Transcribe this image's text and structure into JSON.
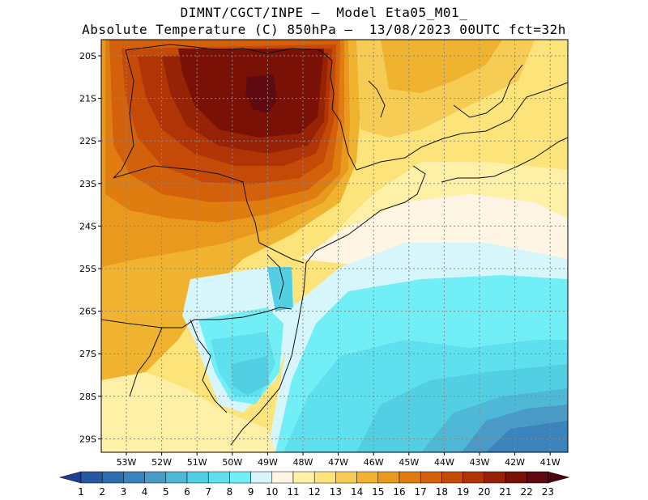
{
  "header": {
    "title_line1": "DIMNT/CGCT/INPE —  Model Eta05_M01_",
    "title_line2": "Absolute Temperature (C) 850hPa —  13/08/2023 00UTC fct=32h"
  },
  "map": {
    "lat_labels": [
      "20S",
      "21S",
      "22S",
      "23S",
      "24S",
      "25S",
      "26S",
      "27S",
      "28S",
      "29S"
    ],
    "lon_labels": [
      "53W",
      "52W",
      "51W",
      "50W",
      "49W",
      "48W",
      "47W",
      "46W",
      "45W",
      "44W",
      "43W",
      "42W",
      "41W"
    ]
  },
  "colorbar": {
    "labels": [
      "1",
      "2",
      "3",
      "4",
      "5",
      "6",
      "7",
      "8",
      "9",
      "10",
      "11",
      "12",
      "13",
      "14",
      "15",
      "16",
      "17",
      "18",
      "19",
      "20",
      "21",
      "22",
      "23"
    ],
    "colors": [
      "#1f3f8f",
      "#2a58a0",
      "#2f6cb0",
      "#3a83bd",
      "#4a9ac8",
      "#4fb8d6",
      "#52cfe3",
      "#5ee0ef",
      "#72eef7",
      "#d6f6fb",
      "#fff5e4",
      "#fff0a8",
      "#fde47a",
      "#f6cc55",
      "#f0b32f",
      "#e99a1e",
      "#e07d10",
      "#d3600a",
      "#c54a08",
      "#b03406",
      "#972306",
      "#7a1106",
      "#5e0a10",
      "#4a0610"
    ],
    "field_temperatures_sample": [
      17,
      18,
      19,
      20,
      21,
      22,
      15,
      14,
      13,
      12,
      11,
      10,
      9,
      8,
      7,
      6,
      5,
      4,
      3
    ]
  }
}
